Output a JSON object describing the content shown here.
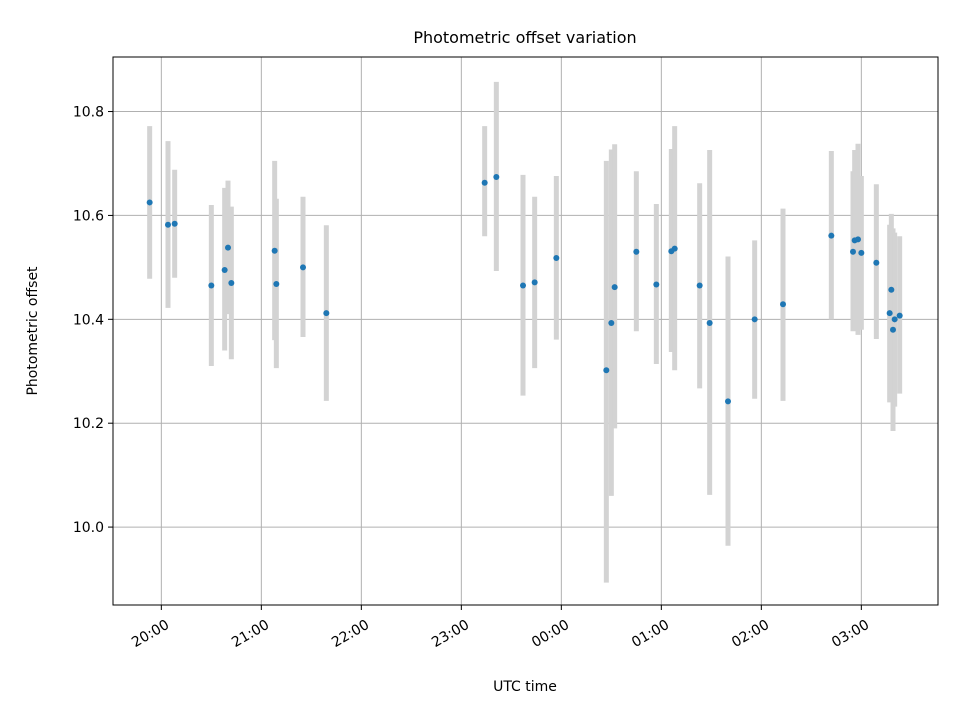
{
  "chart_data": {
    "type": "scatter",
    "title": "Photometric offset variation",
    "xlabel": "UTC time",
    "ylabel": "Photometric offset",
    "x_unit": "hours (UTC clock time, continuing past midnight)",
    "xlim": [
      "19:31",
      "03:46"
    ],
    "ylim": [
      9.85,
      10.905
    ],
    "x_ticks": [
      {
        "value": "20:00",
        "label": "20:00"
      },
      {
        "value": "21:00",
        "label": "21:00"
      },
      {
        "value": "22:00",
        "label": "22:00"
      },
      {
        "value": "23:00",
        "label": "23:00"
      },
      {
        "value": "00:00",
        "label": "00:00"
      },
      {
        "value": "01:00",
        "label": "01:00"
      },
      {
        "value": "02:00",
        "label": "02:00"
      },
      {
        "value": "03:00",
        "label": "03:00"
      }
    ],
    "y_ticks": [
      {
        "value": 10.0,
        "label": "10.0"
      },
      {
        "value": 10.2,
        "label": "10.2"
      },
      {
        "value": 10.4,
        "label": "10.4"
      },
      {
        "value": 10.6,
        "label": "10.6"
      },
      {
        "value": 10.8,
        "label": "10.8"
      }
    ],
    "grid": true,
    "marker_color": "#1f77b4",
    "errorbar_color": "#d3d3d3",
    "points": [
      {
        "time": "19:53",
        "y": 10.625,
        "ylow": 10.478,
        "yhigh": 10.772
      },
      {
        "time": "20:04",
        "y": 10.582,
        "ylow": 10.422,
        "yhigh": 10.743
      },
      {
        "time": "20:08",
        "y": 10.584,
        "ylow": 10.48,
        "yhigh": 10.688
      },
      {
        "time": "20:30",
        "y": 10.465,
        "ylow": 10.31,
        "yhigh": 10.62
      },
      {
        "time": "20:38",
        "y": 10.495,
        "ylow": 10.34,
        "yhigh": 10.653
      },
      {
        "time": "20:40",
        "y": 10.538,
        "ylow": 10.41,
        "yhigh": 10.667
      },
      {
        "time": "20:42",
        "y": 10.47,
        "ylow": 10.323,
        "yhigh": 10.617
      },
      {
        "time": "21:08",
        "y": 10.532,
        "ylow": 10.36,
        "yhigh": 10.705
      },
      {
        "time": "21:09",
        "y": 10.468,
        "ylow": 10.306,
        "yhigh": 10.632
      },
      {
        "time": "21:25",
        "y": 10.5,
        "ylow": 10.366,
        "yhigh": 10.636
      },
      {
        "time": "21:39",
        "y": 10.412,
        "ylow": 10.243,
        "yhigh": 10.581
      },
      {
        "time": "23:14",
        "y": 10.663,
        "ylow": 10.56,
        "yhigh": 10.772
      },
      {
        "time": "23:21",
        "y": 10.674,
        "ylow": 10.493,
        "yhigh": 10.857
      },
      {
        "time": "23:37",
        "y": 10.465,
        "ylow": 10.253,
        "yhigh": 10.678
      },
      {
        "time": "23:44",
        "y": 10.471,
        "ylow": 10.306,
        "yhigh": 10.636
      },
      {
        "time": "23:57",
        "y": 10.518,
        "ylow": 10.361,
        "yhigh": 10.676
      },
      {
        "time": "00:27",
        "y": 10.302,
        "ylow": 9.893,
        "yhigh": 10.705
      },
      {
        "time": "00:30",
        "y": 10.393,
        "ylow": 10.06,
        "yhigh": 10.727
      },
      {
        "time": "00:32",
        "y": 10.462,
        "ylow": 10.19,
        "yhigh": 10.737
      },
      {
        "time": "00:45",
        "y": 10.53,
        "ylow": 10.377,
        "yhigh": 10.685
      },
      {
        "time": "00:57",
        "y": 10.467,
        "ylow": 10.314,
        "yhigh": 10.622
      },
      {
        "time": "01:06",
        "y": 10.531,
        "ylow": 10.337,
        "yhigh": 10.728
      },
      {
        "time": "01:08",
        "y": 10.536,
        "ylow": 10.302,
        "yhigh": 10.772
      },
      {
        "time": "01:23",
        "y": 10.465,
        "ylow": 10.267,
        "yhigh": 10.662
      },
      {
        "time": "01:29",
        "y": 10.393,
        "ylow": 10.062,
        "yhigh": 10.726
      },
      {
        "time": "01:40",
        "y": 10.242,
        "ylow": 9.964,
        "yhigh": 10.521
      },
      {
        "time": "01:56",
        "y": 10.4,
        "ylow": 10.247,
        "yhigh": 10.552
      },
      {
        "time": "02:13",
        "y": 10.429,
        "ylow": 10.243,
        "yhigh": 10.613
      },
      {
        "time": "02:42",
        "y": 10.561,
        "ylow": 10.4,
        "yhigh": 10.724
      },
      {
        "time": "02:55",
        "y": 10.53,
        "ylow": 10.377,
        "yhigh": 10.685
      },
      {
        "time": "02:56",
        "y": 10.552,
        "ylow": 10.382,
        "yhigh": 10.726
      },
      {
        "time": "02:58",
        "y": 10.554,
        "ylow": 10.37,
        "yhigh": 10.738
      },
      {
        "time": "03:00",
        "y": 10.528,
        "ylow": 10.38,
        "yhigh": 10.676
      },
      {
        "time": "03:09",
        "y": 10.509,
        "ylow": 10.362,
        "yhigh": 10.66
      },
      {
        "time": "03:17",
        "y": 10.412,
        "ylow": 10.24,
        "yhigh": 10.582
      },
      {
        "time": "03:18",
        "y": 10.457,
        "ylow": 10.31,
        "yhigh": 10.603
      },
      {
        "time": "03:19",
        "y": 10.38,
        "ylow": 10.185,
        "yhigh": 10.575
      },
      {
        "time": "03:20",
        "y": 10.4,
        "ylow": 10.232,
        "yhigh": 10.567
      },
      {
        "time": "03:23",
        "y": 10.407,
        "ylow": 10.257,
        "yhigh": 10.56
      }
    ]
  }
}
